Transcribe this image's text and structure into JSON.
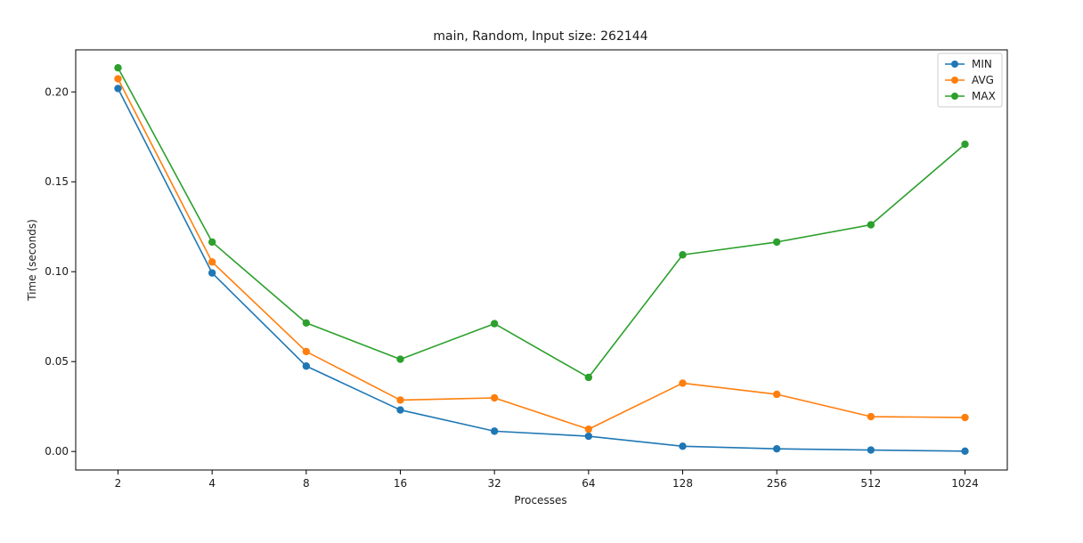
{
  "chart_data": {
    "type": "line",
    "title": "main, Random, Input size: 262144",
    "xlabel": "Processes",
    "ylabel": "Time (seconds)",
    "categories": [
      "2",
      "4",
      "8",
      "16",
      "32",
      "64",
      "128",
      "256",
      "512",
      "1024"
    ],
    "ylim": [
      -0.0103,
      0.2234
    ],
    "yticks": [
      "0.00",
      "0.05",
      "0.10",
      "0.15",
      "0.20"
    ],
    "yticks_values": [
      0.0,
      0.05,
      0.1,
      0.15,
      0.2
    ],
    "legend_position": "top-right",
    "grid": false,
    "series": [
      {
        "name": "MIN",
        "color": "#1f77b4",
        "values": [
          0.2019,
          0.0993,
          0.0475,
          0.0231,
          0.0113,
          0.0085,
          0.0029,
          0.0015,
          0.0008,
          0.0002
        ]
      },
      {
        "name": "AVG",
        "color": "#ff7f0e",
        "values": [
          0.2073,
          0.1054,
          0.0556,
          0.0286,
          0.0298,
          0.0124,
          0.038,
          0.0318,
          0.0194,
          0.0189
        ]
      },
      {
        "name": "MAX",
        "color": "#2ca02c",
        "values": [
          0.2134,
          0.1165,
          0.0715,
          0.0513,
          0.0711,
          0.0412,
          0.1094,
          0.1165,
          0.1261,
          0.1709
        ]
      }
    ]
  }
}
